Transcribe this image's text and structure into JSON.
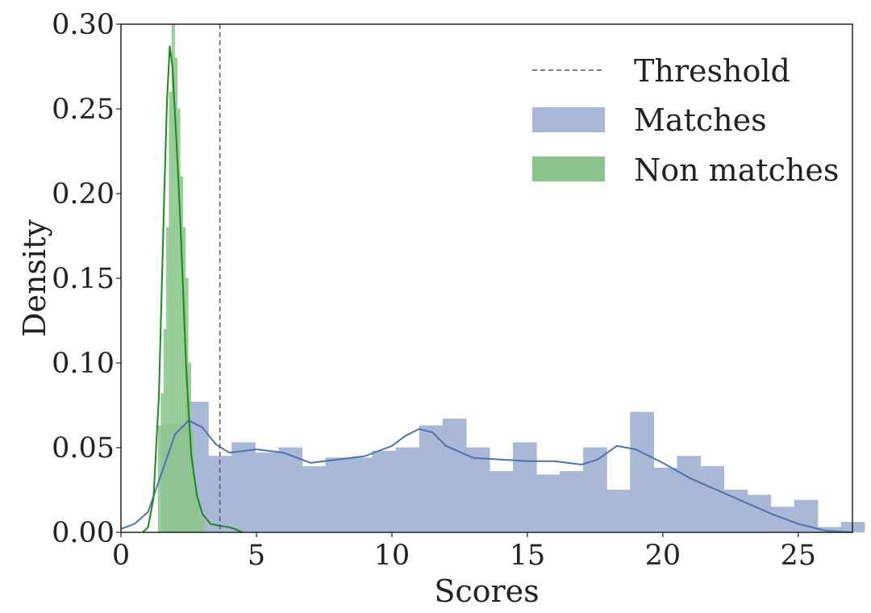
{
  "chart_data": {
    "type": "histogram",
    "title": "",
    "xlabel": "Scores",
    "ylabel": "Density",
    "xlim": [
      0,
      27
    ],
    "ylim": [
      0,
      0.3
    ],
    "x_ticks": [
      0,
      5,
      10,
      15,
      20,
      25
    ],
    "y_ticks": [
      0.0,
      0.05,
      0.1,
      0.15,
      0.2,
      0.25,
      0.3
    ],
    "y_tick_labels": [
      "0.00",
      "0.05",
      "0.10",
      "0.15",
      "0.20",
      "0.25",
      "0.30"
    ],
    "x_tick_labels": [
      "0",
      "5",
      "10",
      "15",
      "20",
      "25"
    ],
    "grid": false,
    "threshold": {
      "name": "Threshold",
      "x": 3.65,
      "color": "#555555"
    },
    "series": [
      {
        "name": "Matches",
        "color": "#4c72b0",
        "fill": "#a8b8d6",
        "bin_start": 1.5,
        "bin_width": 0.865,
        "values": [
          0.064,
          0.077,
          0.045,
          0.053,
          0.047,
          0.05,
          0.039,
          0.044,
          0.044,
          0.048,
          0.05,
          0.063,
          0.067,
          0.05,
          0.036,
          0.053,
          0.034,
          0.036,
          0.05,
          0.025,
          0.071,
          0.038,
          0.045,
          0.039,
          0.025,
          0.022,
          0.015,
          0.019,
          0.003,
          0.006
        ],
        "kde_x": [
          0,
          0.5,
          1.0,
          1.5,
          2.0,
          2.5,
          3.0,
          3.5,
          4.0,
          5.0,
          6.0,
          7.0,
          8.0,
          9.0,
          10.0,
          10.5,
          11.0,
          11.5,
          12.0,
          13.0,
          14.0,
          15.0,
          16.0,
          17.0,
          17.6,
          18.3,
          19.0,
          20.0,
          21.0,
          22.0,
          23.0,
          24.0,
          25.0,
          26.0,
          27.0
        ],
        "kde_y": [
          0.002,
          0.005,
          0.012,
          0.035,
          0.058,
          0.066,
          0.062,
          0.052,
          0.047,
          0.049,
          0.047,
          0.041,
          0.043,
          0.045,
          0.051,
          0.057,
          0.061,
          0.059,
          0.051,
          0.044,
          0.043,
          0.042,
          0.042,
          0.04,
          0.043,
          0.051,
          0.049,
          0.041,
          0.032,
          0.025,
          0.018,
          0.011,
          0.005,
          0.001,
          0.0
        ]
      },
      {
        "name": "Non matches",
        "color": "#1a8a1a",
        "fill": "#8cc58c",
        "bin_start": 1.38,
        "bin_width": 0.1,
        "values": [
          0.063,
          0.082,
          0.12,
          0.18,
          0.26,
          0.3,
          0.28,
          0.25,
          0.21,
          0.18,
          0.15,
          0.1,
          0.06,
          0.03,
          0.02,
          0.01,
          0.007
        ],
        "kde_x": [
          0.8,
          1.0,
          1.2,
          1.4,
          1.6,
          1.7,
          1.8,
          1.9,
          2.0,
          2.1,
          2.2,
          2.3,
          2.4,
          2.5,
          2.6,
          2.8,
          3.0,
          3.3,
          3.6,
          4.0,
          4.2,
          4.5
        ],
        "kde_y": [
          0.0,
          0.003,
          0.02,
          0.08,
          0.2,
          0.255,
          0.287,
          0.275,
          0.245,
          0.215,
          0.18,
          0.14,
          0.1,
          0.07,
          0.045,
          0.022,
          0.011,
          0.005,
          0.004,
          0.003,
          0.002,
          0.0
        ]
      }
    ],
    "legend": {
      "position": "top-right",
      "entries": [
        "Threshold",
        "Matches",
        "Non matches"
      ]
    }
  }
}
